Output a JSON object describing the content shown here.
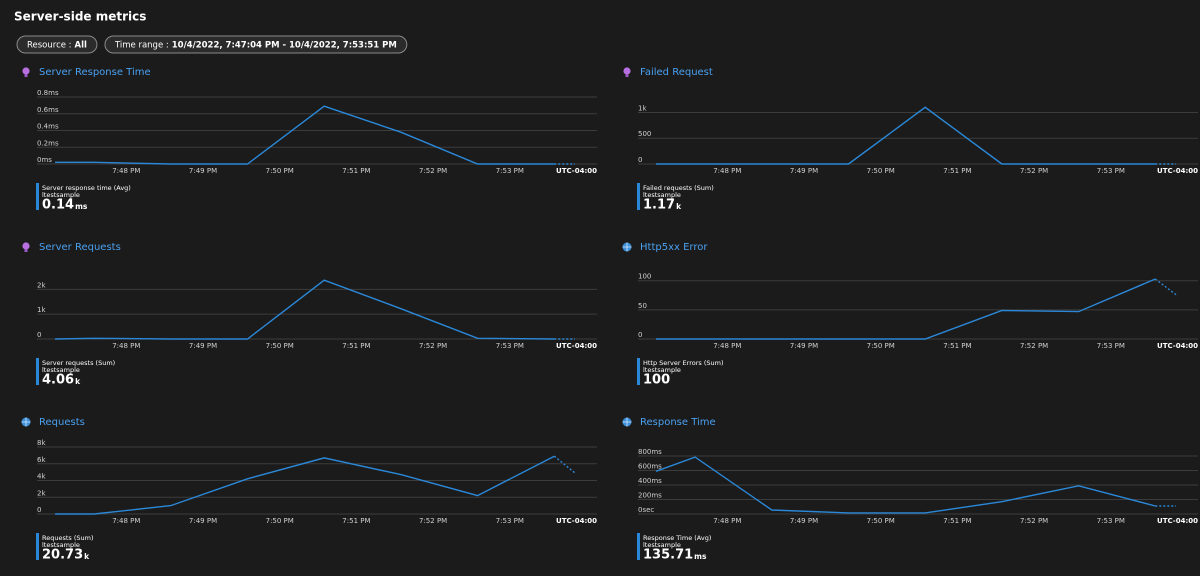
{
  "header": {
    "title": "Server-side metrics"
  },
  "filters": [
    {
      "label": "Resource :",
      "value": "All"
    },
    {
      "label": "Time range :",
      "value": "10/4/2022, 7:47:04 PM - 10/4/2022, 7:53:51 PM"
    }
  ],
  "chart_data": [
    {
      "type": "line",
      "title": "Server Response Time",
      "color": "#2b88d8",
      "dashed_last_segment": true,
      "x": [
        47.07,
        47.58,
        48.58,
        49.58,
        50.58,
        51.58,
        52.58,
        53.58,
        53.85
      ],
      "series": [
        {
          "name": "Server response time (Avg)",
          "source": "ltestsample",
          "values": [
            0.02,
            0.02,
            0,
            0,
            0.69,
            0.38,
            0,
            0,
            0
          ]
        }
      ],
      "xlim": [
        47.07,
        53.85
      ],
      "xticks": [
        {
          "value": 48,
          "label": "7:48 PM"
        },
        {
          "value": 49,
          "label": "7:49 PM"
        },
        {
          "value": 50,
          "label": "7:50 PM"
        },
        {
          "value": 51,
          "label": "7:51 PM"
        },
        {
          "value": 52,
          "label": "7:52 PM"
        },
        {
          "value": 53,
          "label": "7:53 PM"
        }
      ],
      "x_axis_label": "UTC-04:00",
      "ylim": [
        0,
        0.8
      ],
      "yticks": [
        {
          "value": 0,
          "label": "0ms"
        },
        {
          "value": 0.2,
          "label": "0.2ms"
        },
        {
          "value": 0.4,
          "label": "0.4ms"
        },
        {
          "value": 0.6,
          "label": "0.6ms"
        },
        {
          "value": 0.8,
          "label": "0.8ms"
        }
      ],
      "summary": {
        "value": "0.14",
        "unit": "ms"
      }
    },
    {
      "type": "line",
      "title": "Failed Request",
      "color": "#2b88d8",
      "dashed_last_segment": true,
      "x": [
        47.07,
        47.58,
        48.58,
        49.58,
        50.58,
        51.58,
        52.58,
        53.58,
        53.85
      ],
      "series": [
        {
          "name": "Failed requests (Sum)",
          "source": "ltestsample",
          "values": [
            0,
            0,
            0,
            0,
            1100,
            0,
            0,
            0,
            0
          ]
        }
      ],
      "xlim": [
        47.07,
        53.85
      ],
      "xticks": [
        {
          "value": 48,
          "label": "7:48 PM"
        },
        {
          "value": 49,
          "label": "7:49 PM"
        },
        {
          "value": 50,
          "label": "7:50 PM"
        },
        {
          "value": 51,
          "label": "7:51 PM"
        },
        {
          "value": 52,
          "label": "7:52 PM"
        },
        {
          "value": 53,
          "label": "7:53 PM"
        }
      ],
      "x_axis_label": "UTC-04:00",
      "ylim": [
        0,
        1300
      ],
      "yticks": [
        0,
        500,
        {
          "value": 1000,
          "label": "1k"
        }
      ],
      "summary": {
        "value": "1.17",
        "unit": "k"
      }
    },
    {
      "type": "line",
      "title": "Server Requests",
      "color": "#2b88d8",
      "dashed_last_segment": true,
      "x": [
        47.07,
        47.58,
        48.58,
        49.58,
        50.58,
        51.58,
        52.58,
        53.58,
        53.85
      ],
      "series": [
        {
          "name": "Server requests (Sum)",
          "source": "ltestsample",
          "values": [
            0,
            30,
            0,
            0,
            2370,
            1220,
            30,
            0,
            0
          ]
        }
      ],
      "xlim": [
        47.07,
        53.85
      ],
      "xticks": [
        {
          "value": 48,
          "label": "7:48 PM"
        },
        {
          "value": 49,
          "label": "7:49 PM"
        },
        {
          "value": 50,
          "label": "7:50 PM"
        },
        {
          "value": 51,
          "label": "7:51 PM"
        },
        {
          "value": 52,
          "label": "7:52 PM"
        },
        {
          "value": 53,
          "label": "7:53 PM"
        }
      ],
      "x_axis_label": "UTC-04:00",
      "ylim": [
        0,
        2700
      ],
      "yticks": [
        0,
        {
          "value": 1000,
          "label": "1k"
        },
        {
          "value": 2000,
          "label": "2k"
        }
      ],
      "summary": {
        "value": "4.06",
        "unit": "k"
      }
    },
    {
      "type": "line",
      "title": "Http5xx Error",
      "color": "#2b88d8",
      "dashed_last_segment": true,
      "x": [
        47.07,
        47.58,
        48.58,
        49.58,
        50.58,
        51.58,
        52.58,
        53.58,
        53.85
      ],
      "series": [
        {
          "name": "Http Server Errors (Sum)",
          "source": "ltestsample",
          "values": [
            0,
            0,
            0,
            0,
            0,
            49,
            47,
            103,
            76
          ]
        }
      ],
      "xlim": [
        47.07,
        53.85
      ],
      "xticks": [
        {
          "value": 48,
          "label": "7:48 PM"
        },
        {
          "value": 49,
          "label": "7:49 PM"
        },
        {
          "value": 50,
          "label": "7:50 PM"
        },
        {
          "value": 51,
          "label": "7:51 PM"
        },
        {
          "value": 52,
          "label": "7:52 PM"
        },
        {
          "value": 53,
          "label": "7:53 PM"
        }
      ],
      "x_axis_label": "UTC-04:00",
      "ylim": [
        0,
        115
      ],
      "yticks": [
        0,
        50,
        100
      ],
      "summary": {
        "value": "100"
      }
    },
    {
      "type": "line",
      "title": "Requests",
      "color": "#2b88d8",
      "dashed_last_segment": true,
      "x": [
        47.07,
        47.58,
        48.58,
        49.58,
        50.58,
        51.58,
        52.58,
        53.58,
        53.85
      ],
      "series": [
        {
          "name": "Requests (Sum)",
          "source": "ltestsample",
          "values": [
            0,
            0,
            1000,
            4200,
            6700,
            4700,
            2200,
            6900,
            4900
          ]
        }
      ],
      "xlim": [
        47.07,
        53.85
      ],
      "xticks": [
        {
          "value": 48,
          "label": "7:48 PM"
        },
        {
          "value": 49,
          "label": "7:49 PM"
        },
        {
          "value": 50,
          "label": "7:50 PM"
        },
        {
          "value": 51,
          "label": "7:51 PM"
        },
        {
          "value": 52,
          "label": "7:52 PM"
        },
        {
          "value": 53,
          "label": "7:53 PM"
        }
      ],
      "x_axis_label": "UTC-04:00",
      "ylim": [
        0,
        8000
      ],
      "yticks": [
        0,
        {
          "value": 2000,
          "label": "2k"
        },
        {
          "value": 4000,
          "label": "4k"
        },
        {
          "value": 6000,
          "label": "6k"
        },
        {
          "value": 8000,
          "label": "8k"
        }
      ],
      "summary": {
        "value": "20.73",
        "unit": "k"
      }
    },
    {
      "type": "line",
      "title": "Response Time",
      "color": "#2b88d8",
      "dashed_last_segment": true,
      "x": [
        47.07,
        47.58,
        48.58,
        49.58,
        50.58,
        51.58,
        52.58,
        53.58,
        53.85
      ],
      "series": [
        {
          "name": "Response Time (Avg)",
          "source": "ltestsample",
          "values": [
            590,
            785,
            55,
            15,
            15,
            170,
            390,
            110,
            110
          ]
        }
      ],
      "xlim": [
        47.07,
        53.85
      ],
      "xticks": [
        {
          "value": 48,
          "label": "7:48 PM"
        },
        {
          "value": 49,
          "label": "7:49 PM"
        },
        {
          "value": 50,
          "label": "7:50 PM"
        },
        {
          "value": 51,
          "label": "7:51 PM"
        },
        {
          "value": 52,
          "label": "7:52 PM"
        },
        {
          "value": 53,
          "label": "7:53 PM"
        }
      ],
      "x_axis_label": "UTC-04:00",
      "ylim": [
        0,
        925
      ],
      "yticks": [
        {
          "value": 0,
          "label": "0sec"
        },
        {
          "value": 200,
          "label": "200ms"
        },
        {
          "value": 400,
          "label": "400ms"
        },
        {
          "value": 600,
          "label": "600ms"
        },
        {
          "value": 800,
          "label": "800ms"
        }
      ],
      "summary": {
        "value": "135.71",
        "unit": "ms"
      }
    }
  ]
}
